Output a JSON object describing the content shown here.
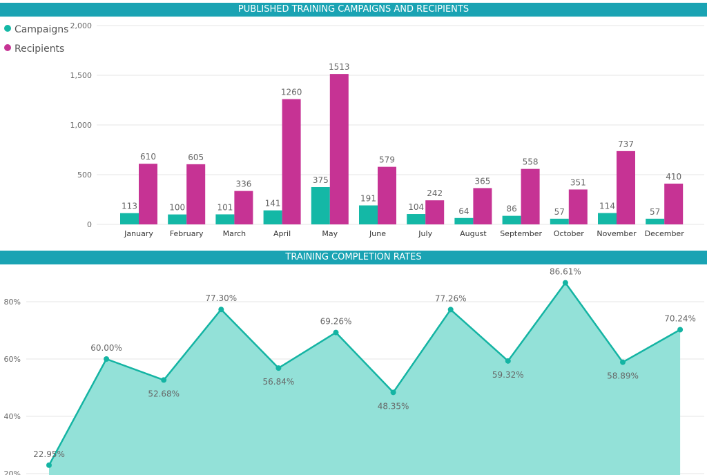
{
  "colors": {
    "banner": "#1aa3b3",
    "campaigns": "#14b8a6",
    "recipients": "#c63394",
    "area_fill": "#93e1d8",
    "line": "#14b4a3",
    "grid": "#e6e6e6",
    "label": "#666666"
  },
  "chart_data": [
    {
      "type": "bar",
      "title": "PUBLISHED TRAINING CAMPAIGNS AND RECIPIENTS",
      "categories": [
        "January",
        "February",
        "March",
        "April",
        "May",
        "June",
        "July",
        "August",
        "September",
        "October",
        "November",
        "December"
      ],
      "series": [
        {
          "name": "Campaigns",
          "values": [
            113,
            100,
            101,
            141,
            375,
            191,
            104,
            64,
            86,
            57,
            114,
            57
          ]
        },
        {
          "name": "Recipients",
          "values": [
            610,
            605,
            336,
            1260,
            1513,
            579,
            242,
            365,
            558,
            351,
            737,
            410
          ]
        }
      ],
      "ylim": [
        0,
        2000
      ],
      "yticks": [
        0,
        500,
        1000,
        1500,
        2000
      ],
      "ytick_labels": [
        "0",
        "500",
        "1,000",
        "1,500",
        "2,000"
      ],
      "legend": "top-left",
      "grid": true
    },
    {
      "type": "area",
      "title": "TRAINING COMPLETION RATES",
      "values": [
        22.95,
        60.0,
        52.68,
        77.3,
        56.84,
        69.26,
        48.35,
        77.26,
        59.32,
        86.61,
        58.89,
        70.24
      ],
      "labels": [
        "22.95%",
        "60.00%",
        "52.68%",
        "77.30%",
        "56.84%",
        "69.26%",
        "48.35%",
        "77.26%",
        "59.32%",
        "86.61%",
        "58.89%",
        "70.24%"
      ],
      "yticks": [
        20,
        40,
        60,
        80
      ],
      "ytick_labels": [
        "20%",
        "40%",
        "60%",
        "80%"
      ],
      "grid": true
    }
  ]
}
